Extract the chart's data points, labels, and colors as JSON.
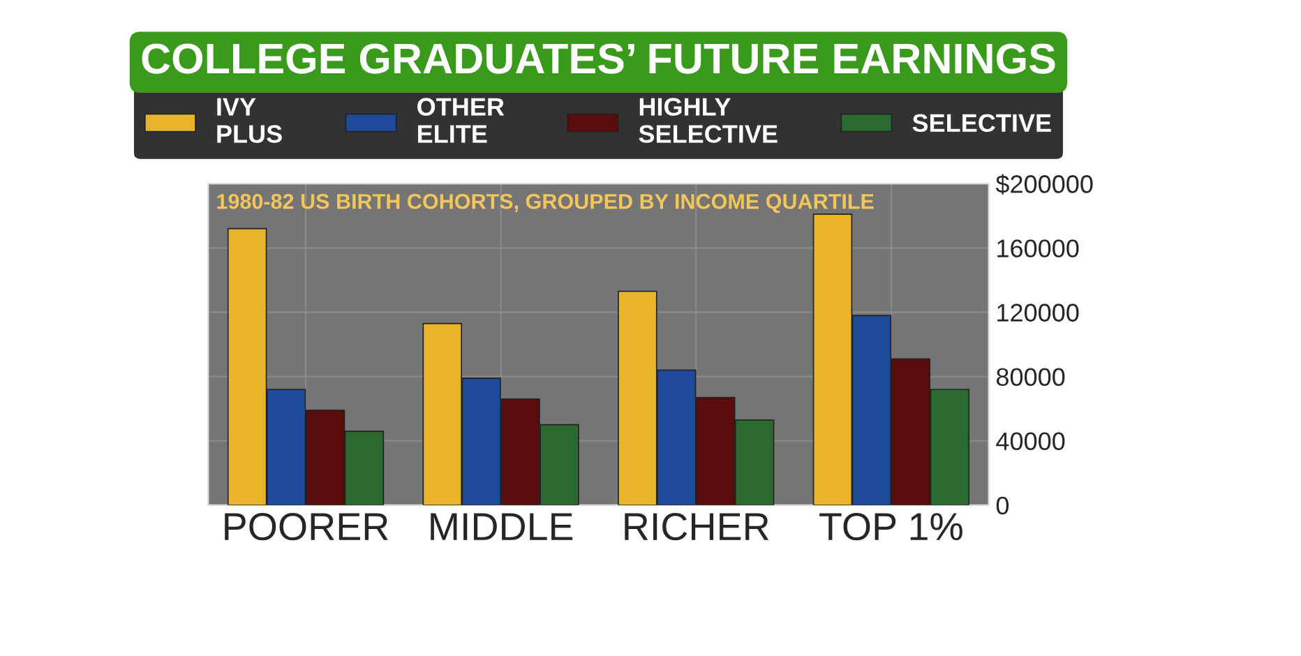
{
  "chart_data": {
    "type": "bar",
    "title": "COLLEGE GRADUATES’ FUTURE EARNINGS",
    "subtitle": "1980-82 US BIRTH COHORTS, GROUPED BY INCOME QUARTILE",
    "categories": [
      "POORER",
      "MIDDLE",
      "RICHER",
      "TOP 1%"
    ],
    "series": [
      {
        "name": "IVY\nPLUS",
        "color": "#e8b42a",
        "values": [
          172000,
          113000,
          133000,
          181000
        ]
      },
      {
        "name": "OTHER\nELITE",
        "color": "#1e4a9a",
        "values": [
          72000,
          79000,
          84000,
          118000
        ]
      },
      {
        "name": "HIGHLY\nSELECTIVE",
        "color": "#5a0c0c",
        "values": [
          59000,
          66000,
          67000,
          91000
        ]
      },
      {
        "name": "SELECTIVE",
        "color": "#2a6a30",
        "values": [
          46000,
          50000,
          53000,
          72000
        ]
      }
    ],
    "ylim": [
      0,
      200000
    ],
    "yticks": [
      0,
      40000,
      80000,
      120000,
      160000,
      {
        "value": 200000,
        "label": "$200000"
      }
    ],
    "grid": true,
    "legend": "top"
  }
}
